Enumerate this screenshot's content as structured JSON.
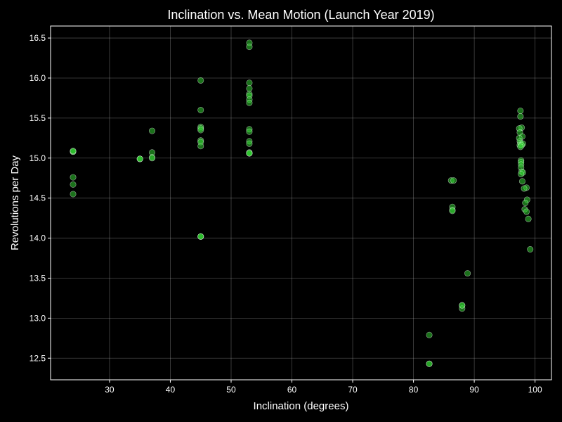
{
  "chart_data": {
    "type": "scatter",
    "title": "Inclination vs. Mean Motion (Launch Year 2019)",
    "xlabel": "Inclination (degrees)",
    "ylabel": "Revolutions per Day",
    "xlim": [
      20.3,
      102.7
    ],
    "ylim": [
      12.23,
      16.65
    ],
    "xticks": [
      30,
      40,
      50,
      60,
      70,
      80,
      90,
      100
    ],
    "yticks": [
      12.5,
      13.0,
      13.5,
      14.0,
      14.5,
      15.0,
      15.5,
      16.0,
      16.5
    ],
    "ytick_labels": [
      "12.5",
      "13.0",
      "13.5",
      "14.0",
      "14.5",
      "15.0",
      "15.5",
      "16.0",
      "16.5"
    ],
    "grid": true,
    "color": "#32cd32",
    "series": [
      {
        "points": [
          [
            24.0,
            15.08
          ],
          [
            24.0,
            15.08
          ],
          [
            24.0,
            15.09
          ],
          [
            24.0,
            14.76
          ],
          [
            24.0,
            14.67
          ],
          [
            24.0,
            14.55
          ],
          [
            35.0,
            14.99
          ],
          [
            35.0,
            14.99
          ],
          [
            35.0,
            14.99
          ],
          [
            37.0,
            15.34
          ],
          [
            37.0,
            15.07
          ],
          [
            37.0,
            15.01
          ],
          [
            37.0,
            15.0
          ],
          [
            45.0,
            15.97
          ],
          [
            45.0,
            15.6
          ],
          [
            45.0,
            15.39
          ],
          [
            45.0,
            15.37
          ],
          [
            45.0,
            15.35
          ],
          [
            45.0,
            15.22
          ],
          [
            45.0,
            15.2
          ],
          [
            45.0,
            15.15
          ],
          [
            45.0,
            14.02
          ],
          [
            45.0,
            14.02
          ],
          [
            45.0,
            14.02
          ],
          [
            53.0,
            16.44
          ],
          [
            53.0,
            16.39
          ],
          [
            53.0,
            15.94
          ],
          [
            53.0,
            15.87
          ],
          [
            53.0,
            15.8
          ],
          [
            53.0,
            15.78
          ],
          [
            53.0,
            15.73
          ],
          [
            53.0,
            15.69
          ],
          [
            53.0,
            15.36
          ],
          [
            53.0,
            15.33
          ],
          [
            53.0,
            15.21
          ],
          [
            53.0,
            15.18
          ],
          [
            53.0,
            15.07
          ],
          [
            53.0,
            15.06
          ],
          [
            53.0,
            15.06
          ],
          [
            53.0,
            15.06
          ],
          [
            82.6,
            12.79
          ],
          [
            82.6,
            12.43
          ],
          [
            82.6,
            12.43
          ],
          [
            86.2,
            14.72
          ],
          [
            86.6,
            14.72
          ],
          [
            86.4,
            14.39
          ],
          [
            86.4,
            14.35
          ],
          [
            86.4,
            14.34
          ],
          [
            88.0,
            13.16
          ],
          [
            88.0,
            13.12
          ],
          [
            88.0,
            13.16
          ],
          [
            88.9,
            13.56
          ],
          [
            97.6,
            15.59
          ],
          [
            97.6,
            15.52
          ],
          [
            97.8,
            15.38
          ],
          [
            97.4,
            15.37
          ],
          [
            97.5,
            15.32
          ],
          [
            97.9,
            15.27
          ],
          [
            97.4,
            15.25
          ],
          [
            97.5,
            15.21
          ],
          [
            97.6,
            15.19
          ],
          [
            97.7,
            15.17
          ],
          [
            98.0,
            15.18
          ],
          [
            97.5,
            15.16
          ],
          [
            97.8,
            15.16
          ],
          [
            97.6,
            15.14
          ],
          [
            97.7,
            14.97
          ],
          [
            97.7,
            14.95
          ],
          [
            97.7,
            14.92
          ],
          [
            97.7,
            14.88
          ],
          [
            97.8,
            14.83
          ],
          [
            98.0,
            14.82
          ],
          [
            97.7,
            14.8
          ],
          [
            97.9,
            14.71
          ],
          [
            98.6,
            14.63
          ],
          [
            98.2,
            14.62
          ],
          [
            98.7,
            14.48
          ],
          [
            98.4,
            14.44
          ],
          [
            98.3,
            14.36
          ],
          [
            98.6,
            14.33
          ],
          [
            98.9,
            14.24
          ],
          [
            99.2,
            13.86
          ]
        ]
      }
    ]
  }
}
